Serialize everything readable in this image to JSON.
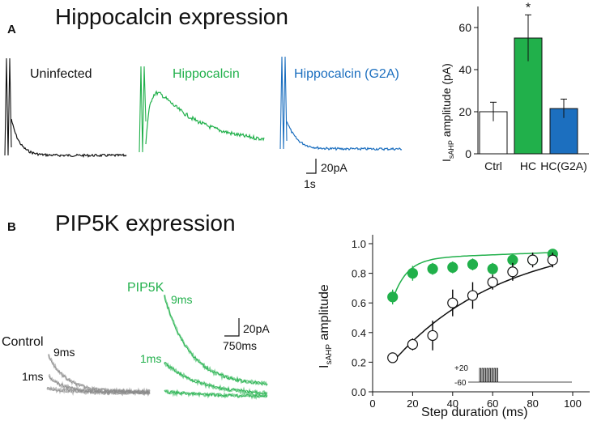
{
  "colors": {
    "green": "#21b04b",
    "blue": "#1c6fbf",
    "black": "#111111",
    "gray": "#8a8a8a"
  },
  "panel_a": {
    "letter": "A",
    "title": "Hippocalcin expression",
    "trace_labels": {
      "uninfected": "Uninfected",
      "hippocalcin": "Hippocalcin",
      "g2a": "Hippocalcin (G2A)"
    },
    "scale_bar": {
      "y": "20pA",
      "x": "1s"
    }
  },
  "panel_b": {
    "letter": "B",
    "title": "PIP5K expression",
    "labels": {
      "control": "Control",
      "pip5k": "PIP5K",
      "ctrl_9": "9ms",
      "ctrl_1": "1ms",
      "pip_9": "9ms",
      "pip_1": "1ms"
    },
    "scale_bar": {
      "y": "20pA",
      "x": "750ms"
    },
    "inset": {
      "top": "+20",
      "bottom": "-60"
    }
  },
  "chart_data": [
    {
      "type": "bar",
      "ylabel_main": "I",
      "ylabel_sub": "sAHP",
      "ylabel_rest": " amplitude (pA)",
      "categories": [
        "Ctrl",
        "HC",
        "HC(G2A)"
      ],
      "values": [
        20,
        55,
        21.5
      ],
      "errors": [
        4.5,
        11,
        4.5
      ],
      "bar_colors": [
        "#ffffff",
        "#21b04b",
        "#1c6fbf"
      ],
      "significance": [
        "",
        "*",
        ""
      ],
      "ylim": [
        0,
        70
      ],
      "yticks": [
        "0",
        "20",
        "40",
        "60"
      ]
    },
    {
      "type": "scatter",
      "xlabel": "Step duration (ms)",
      "ylabel_main": "I",
      "ylabel_sub": "sAHP",
      "ylabel_rest": " amplitude",
      "xlim": [
        0,
        110
      ],
      "ylim": [
        0,
        1.08
      ],
      "xticks": [
        "0",
        "20",
        "40",
        "60",
        "80",
        "100"
      ],
      "yticks": [
        "0.0",
        "0.2",
        "0.4",
        "0.6",
        "0.8",
        "1.0"
      ],
      "series": [
        {
          "name": "PIP5K",
          "color": "#21b04b",
          "x": [
            10,
            20,
            30,
            40,
            50,
            60,
            70,
            80,
            90
          ],
          "y": [
            0.64,
            0.8,
            0.83,
            0.84,
            0.86,
            0.83,
            0.89,
            0.89,
            0.93
          ],
          "err": [
            0.05,
            0.05,
            0.04,
            0.04,
            0.04,
            0.04,
            0.03,
            0.03,
            0.03
          ]
        },
        {
          "name": "Control",
          "color": "#000000",
          "x": [
            10,
            20,
            30,
            40,
            50,
            60,
            70,
            80,
            90
          ],
          "y": [
            0.23,
            0.32,
            0.38,
            0.6,
            0.65,
            0.74,
            0.81,
            0.89,
            0.89
          ],
          "err": [
            0.03,
            0.04,
            0.1,
            0.09,
            0.09,
            0.05,
            0.06,
            0.05,
            0.05
          ]
        }
      ]
    }
  ]
}
